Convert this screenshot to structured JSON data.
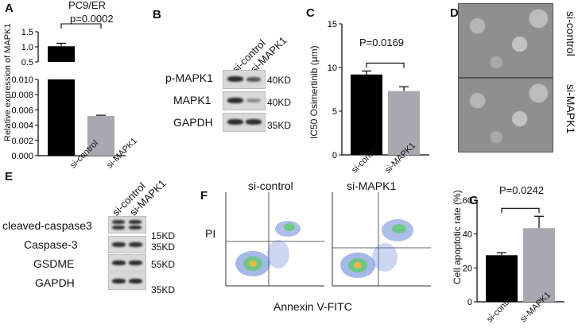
{
  "panel_labels": {
    "a": "A",
    "b": "B",
    "c": "C",
    "d": "D",
    "e": "E",
    "f": "F",
    "g": "G"
  },
  "panel_a": {
    "title": "PC9/ER",
    "pvalue": "p=0.0002",
    "ylabel": "Relative expression of MAPK1",
    "chart_data": {
      "type": "bar",
      "categories": [
        "si-control",
        "si-MAPK1"
      ],
      "values": [
        1.02,
        0.0052
      ],
      "errors": [
        0.1,
        0.0001
      ],
      "axis_break": [
        0.01,
        0.5
      ],
      "upper_ticks": [
        "0.0",
        "0.5",
        "1.0",
        "1.5"
      ],
      "lower_ticks": [
        "0.000",
        "0.002",
        "0.004",
        "0.006",
        "0.008",
        "0.010"
      ],
      "ylabel": "Relative expression of MAPK1"
    }
  },
  "panel_b": {
    "columns": [
      "si-control",
      "si-MAPK1"
    ],
    "rows": [
      {
        "label": "p-MAPK1",
        "kd": "40KD"
      },
      {
        "label": "MAPK1",
        "kd": "40KD"
      },
      {
        "label": "GAPDH",
        "kd": "35KD"
      }
    ]
  },
  "panel_c": {
    "pvalue": "P=0.0169",
    "ylabel": "IC50 Osimertinib (μm)",
    "chart_data": {
      "type": "bar",
      "categories": [
        "si-control",
        "si-MAPK1"
      ],
      "values": [
        9.2,
        7.3
      ],
      "errors": [
        0.4,
        0.5
      ],
      "ylim": [
        0,
        15
      ],
      "ticks": [
        "0",
        "5",
        "10",
        "15"
      ],
      "ylabel": "IC50 Osimertinib (μm)"
    }
  },
  "panel_d": {
    "top_label": "si-control",
    "bottom_label": "si-MAPK1"
  },
  "panel_e": {
    "columns": [
      "si-control",
      "si-MAPK1"
    ],
    "rows": [
      {
        "label": "cleaved-caspase3",
        "kd": "15KD"
      },
      {
        "label": "Caspase-3",
        "kd": "35KD"
      },
      {
        "label": "GSDME",
        "kd": "55KD"
      },
      {
        "label": "GAPDH",
        "kd": "35KD"
      }
    ]
  },
  "panel_f": {
    "titles": [
      "si-control",
      "si-MAPK1"
    ],
    "ylabel": "PI",
    "xlabel": "Annexin V-FITC"
  },
  "panel_g": {
    "pvalue": "P=0.0242",
    "ylabel": "Cell apoptotic rate (%)",
    "chart_data": {
      "type": "bar",
      "categories": [
        "si-control",
        "si-MAPK1"
      ],
      "values": [
        27.5,
        43.5
      ],
      "errors": [
        1.5,
        7.0
      ],
      "ylim": [
        0,
        60
      ],
      "ticks": [
        "0",
        "20",
        "40",
        "60"
      ],
      "ylabel": "Cell apoptotic rate (%)"
    }
  }
}
